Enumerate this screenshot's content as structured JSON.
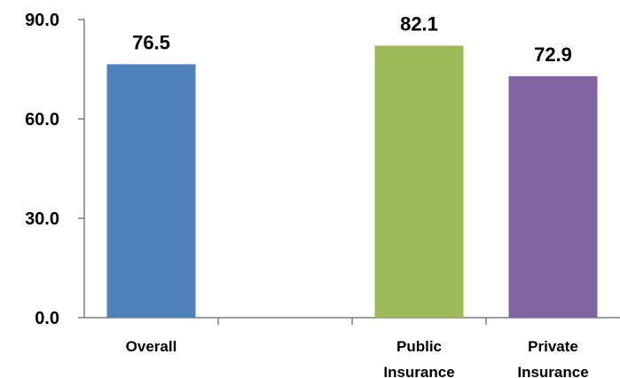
{
  "chart_data": {
    "type": "bar",
    "categories": [
      "Overall",
      "",
      "Public Insurance",
      "Private Insurance"
    ],
    "category_lines": [
      [
        "Overall"
      ],
      [],
      [
        "Public",
        "Insurance"
      ],
      [
        "Private",
        "Insurance"
      ]
    ],
    "values": [
      76.5,
      null,
      82.1,
      72.9
    ],
    "value_labels": [
      "76.5",
      "",
      "82.1",
      "72.9"
    ],
    "colors": [
      "#4f81bd",
      null,
      "#9bbb59",
      "#8064a2"
    ],
    "ylim": [
      0,
      90
    ],
    "yticks": [
      0,
      30,
      60,
      90
    ],
    "ytick_labels": [
      "0.0",
      "30.0",
      "60.0",
      "90.0"
    ],
    "title": "",
    "xlabel": "",
    "ylabel": "",
    "grid": false
  }
}
